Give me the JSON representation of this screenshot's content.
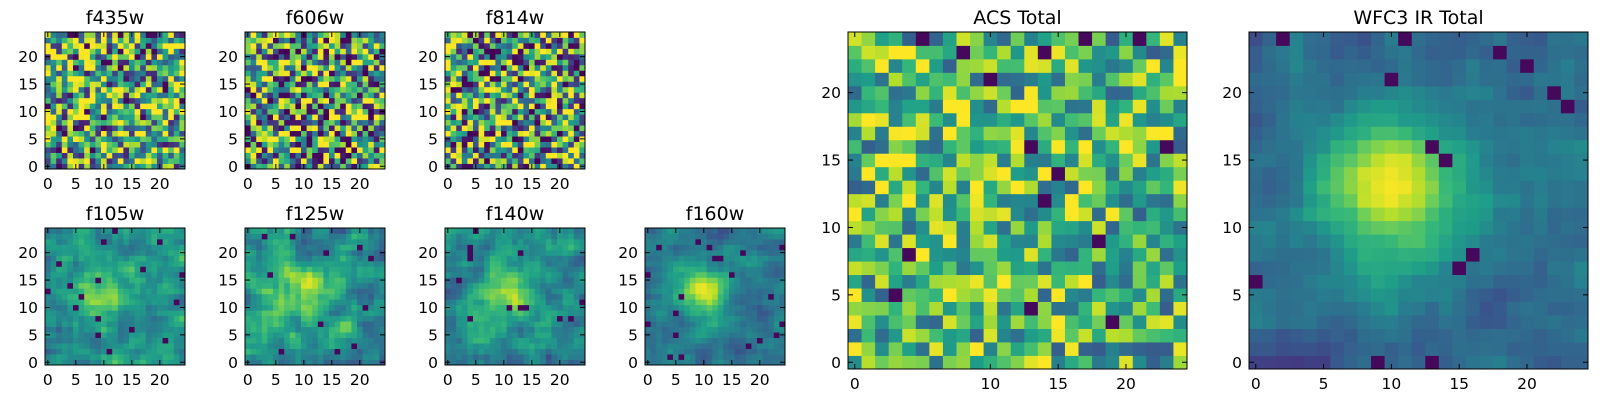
{
  "chart_data": [
    {
      "type": "heatmap",
      "title": "f435w",
      "grid_size": 25,
      "xticks": [
        "0",
        "5",
        "10",
        "15",
        "20"
      ],
      "yticks": [
        "0",
        "5",
        "10",
        "15",
        "20"
      ],
      "pattern": "noise",
      "colormap": "viridis"
    },
    {
      "type": "heatmap",
      "title": "f606w",
      "grid_size": 25,
      "xticks": [
        "0",
        "5",
        "10",
        "15",
        "20"
      ],
      "yticks": [
        "0",
        "5",
        "10",
        "15",
        "20"
      ],
      "pattern": "noise",
      "colormap": "viridis"
    },
    {
      "type": "heatmap",
      "title": "f814w",
      "grid_size": 25,
      "xticks": [
        "0",
        "5",
        "10",
        "15",
        "20"
      ],
      "yticks": [
        "0",
        "5",
        "10",
        "15",
        "20"
      ],
      "pattern": "noise",
      "colormap": "viridis"
    },
    {
      "type": "heatmap",
      "title": "f105w",
      "grid_size": 25,
      "xticks": [
        "0",
        "5",
        "10",
        "15",
        "20"
      ],
      "yticks": [
        "0",
        "5",
        "10",
        "15",
        "20"
      ],
      "pattern": "faint source near (10, 13)",
      "colormap": "viridis"
    },
    {
      "type": "heatmap",
      "title": "f125w",
      "grid_size": 25,
      "xticks": [
        "0",
        "5",
        "10",
        "15",
        "20"
      ],
      "yticks": [
        "0",
        "5",
        "10",
        "15",
        "20"
      ],
      "pattern": "faint source near (10, 13)",
      "colormap": "viridis"
    },
    {
      "type": "heatmap",
      "title": "f140w",
      "grid_size": 25,
      "xticks": [
        "0",
        "5",
        "10",
        "15",
        "20"
      ],
      "yticks": [
        "0",
        "5",
        "10",
        "15",
        "20"
      ],
      "pattern": "source near (10, 13)",
      "colormap": "viridis"
    },
    {
      "type": "heatmap",
      "title": "f160w",
      "grid_size": 25,
      "xticks": [
        "0",
        "5",
        "10",
        "15",
        "20"
      ],
      "yticks": [
        "0",
        "5",
        "10",
        "15",
        "20"
      ],
      "pattern": "bright source near (10, 13)",
      "colormap": "viridis"
    },
    {
      "type": "heatmap",
      "title": "ACS Total",
      "grid_size": 25,
      "xticks": [
        "0",
        "10",
        "15",
        "20"
      ],
      "yticks": [
        "0",
        "5",
        "10",
        "15",
        "20"
      ],
      "pattern": "noise with mild central excess",
      "colormap": "viridis"
    },
    {
      "type": "heatmap",
      "title": "WFC3 IR Total",
      "grid_size": 25,
      "xticks": [
        "0",
        "5",
        "10",
        "15",
        "20"
      ],
      "yticks": [
        "0",
        "5",
        "10",
        "15",
        "20"
      ],
      "pattern": "bright source near (10, 13)",
      "colormap": "viridis"
    }
  ]
}
